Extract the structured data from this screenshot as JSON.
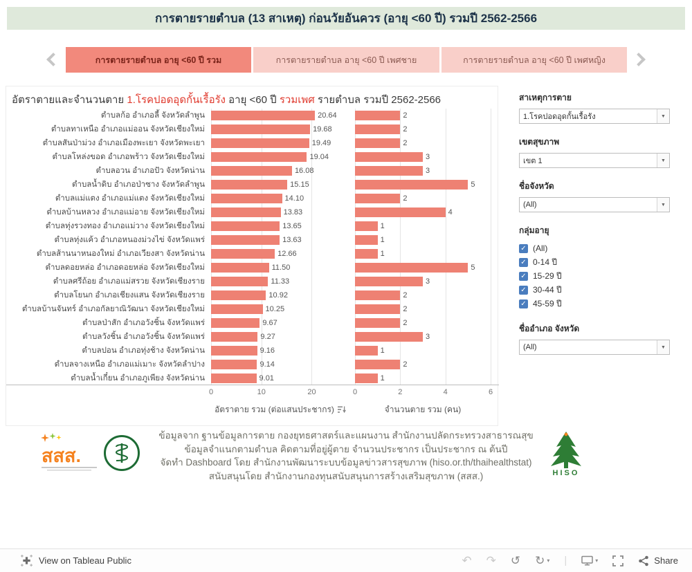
{
  "header": {
    "title": "การตายรายตำบล (13 สาเหตุ) ก่อนวัยอันควร (อายุ <60 ปี) รวมปี 2562-2566"
  },
  "tabs": {
    "items": [
      {
        "label": "การตายรายตำบล อายุ <60 ปี รวม",
        "active": true
      },
      {
        "label": "การตายรายตำบล อายุ <60 ปี เพศชาย",
        "active": false
      },
      {
        "label": "การตายรายตำบล อายุ <60 ปี เพศหญิง",
        "active": false
      }
    ]
  },
  "chart": {
    "title": {
      "p1": "อัตราตายและจำนวนตาย",
      "p2": "1.โรคปอดอุดกั้นเรื้อรัง",
      "p3": "อายุ <60 ปี",
      "p4": "รวมเพศ",
      "p5": "รายตำบล รวมปี 2562-2566"
    }
  },
  "chart_data": {
    "type": "bar",
    "orientation": "horizontal",
    "title": "อัตราตายและจำนวนตาย 1.โรคปอดอุดกั้นเรื้อรัง อายุ <60 ปี รวมเพศ รายตำบล รวมปี 2562-2566",
    "bar_color": "#ee8173",
    "sort": "descending-by-rate",
    "panels": [
      {
        "name": "อัตราตาย รวม (ต่อแสนประชากร)",
        "ticks": [
          0,
          10,
          20
        ],
        "max": 27.5
      },
      {
        "name": "จำนวนตาย รวม (คน)",
        "ticks": [
          0,
          2,
          4,
          6
        ],
        "max": 6
      }
    ],
    "rows": [
      {
        "label": "ตำบลก้อ อำเภอลี้ จังหวัดลำพูน",
        "rate": "20.64",
        "count": 2
      },
      {
        "label": "ตำบลทาเหนือ อำเภอแม่ออน จังหวัดเชียงใหม่",
        "rate": "19.68",
        "count": 2
      },
      {
        "label": "ตำบลสันป่าม่วง อำเภอเมืองพะเยา จังหวัดพะเยา",
        "rate": "19.49",
        "count": 2
      },
      {
        "label": "ตำบลโหล่งขอด อำเภอพร้าว จังหวัดเชียงใหม่",
        "rate": "19.04",
        "count": 3
      },
      {
        "label": "ตำบลอวน อำเภอปัว จังหวัดน่าน",
        "rate": "16.08",
        "count": 3
      },
      {
        "label": "ตำบลน้ำดิบ อำเภอป่าซาง จังหวัดลำพูน",
        "rate": "15.15",
        "count": 5
      },
      {
        "label": "ตำบลแม่แตง อำเภอแม่แตง จังหวัดเชียงใหม่",
        "rate": "14.10",
        "count": 2
      },
      {
        "label": "ตำบลบ้านหลวง อำเภอแม่อาย จังหวัดเชียงใหม่",
        "rate": "13.83",
        "count": 4
      },
      {
        "label": "ตำบลทุ่งรวงทอง อำเภอแม่วาง จังหวัดเชียงใหม่",
        "rate": "13.65",
        "count": 1
      },
      {
        "label": "ตำบลทุ่งแค้ว อำเภอหนองม่วงไข่ จังหวัดแพร่",
        "rate": "13.63",
        "count": 1
      },
      {
        "label": "ตำบลส้านนาหนองใหม่ อำเภอเวียงสา จังหวัดน่าน",
        "rate": "12.66",
        "count": 1
      },
      {
        "label": "ตำบลดอยหล่อ อำเภอดอยหล่อ จังหวัดเชียงใหม่",
        "rate": "11.50",
        "count": 5
      },
      {
        "label": "ตำบลศรีถ้อย อำเภอแม่สรวย จังหวัดเชียงราย",
        "rate": "11.33",
        "count": 3
      },
      {
        "label": "ตำบลโยนก อำเภอเชียงแสน จังหวัดเชียงราย",
        "rate": "10.92",
        "count": 2
      },
      {
        "label": "ตำบลบ้านจันทร์ อำเภอกัลยาณิวัฒนา จังหวัดเชียงใหม่",
        "rate": "10.25",
        "count": 2
      },
      {
        "label": "ตำบลป่าสัก อำเภอวังชิ้น จังหวัดแพร่",
        "rate": "9.67",
        "count": 2
      },
      {
        "label": "ตำบลวังชิ้น อำเภอวังชิ้น จังหวัดแพร่",
        "rate": "9.27",
        "count": 3
      },
      {
        "label": "ตำบลปอน อำเภอทุ่งช้าง จังหวัดน่าน",
        "rate": "9.16",
        "count": 1
      },
      {
        "label": "ตำบลจางเหนือ อำเภอแม่เมาะ จังหวัดลำปาง",
        "rate": "9.14",
        "count": 2
      },
      {
        "label": "ตำบลน้ำเกี๋ยน อำเภอภูเพียง จังหวัดน่าน",
        "rate": "9.01",
        "count": 1
      }
    ]
  },
  "filters": {
    "cause": {
      "label": "สาเหตุการตาย",
      "value": "1.โรคปอดอุดกั้นเรื้อรัง"
    },
    "region": {
      "label": "เขตสุขภาพ",
      "value": "เขต 1"
    },
    "province": {
      "label": "ชื่อจังหวัด",
      "value": "(All)"
    },
    "age_group": {
      "label": "กลุ่มอายุ",
      "options": [
        {
          "label": "(All)",
          "checked": true
        },
        {
          "label": "0-14 ปี",
          "checked": true
        },
        {
          "label": "15-29 ปี",
          "checked": true
        },
        {
          "label": "30-44 ปี",
          "checked": true
        },
        {
          "label": "45-59 ปี",
          "checked": true
        }
      ]
    },
    "district": {
      "label": "ชื่ออำเภอ จังหวัด",
      "value": "(All)"
    }
  },
  "footer": {
    "line1": "ข้อมูลจาก ฐานข้อมูลการตาย กองยุทธศาสตร์และแผนงาน สำนักงานปลัดกระทรวงสาธารณสุข",
    "line2": "ข้อมูลจำแนกตามตำบล คิดตามที่อยู่ผู้ตาย จำนวนประชากร เป็นประชากร ณ ต้นปี",
    "line3": "จัดทำ Dashboard โดย สำนักงานพัฒนาระบบข้อมูลข่าวสารสุขภาพ (hiso.or.th/thaihealthstat)",
    "line4": "สนับสนุนโดย สำนักงานกองทุนสนับสนุนการสร้างเสริมสุขภาพ (สสส.)",
    "logos": {
      "sss_text": "สสส.",
      "hiso_text": "HISO"
    }
  },
  "toolbar": {
    "view_label": "View on Tableau Public",
    "share_label": "Share",
    "icons": {
      "undo": "↶",
      "redo": "↷",
      "revert": "↺",
      "refresh": "↻",
      "caret": "▾",
      "separator": "|"
    }
  },
  "ui": {
    "dropdown_caret": "▼",
    "check_glyph": "✓"
  }
}
